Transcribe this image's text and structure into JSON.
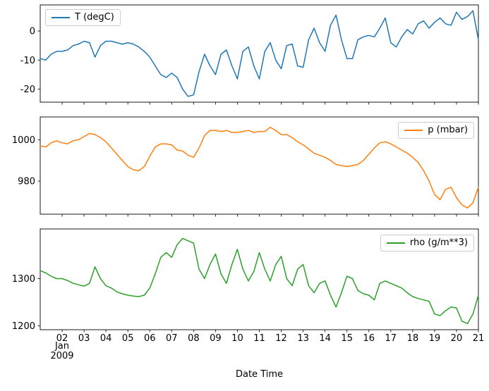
{
  "chart_data": {
    "type": "line",
    "xlabel": "Date Time",
    "xlim": [
      1,
      21
    ],
    "xticks": [
      2,
      3,
      4,
      5,
      6,
      7,
      8,
      9,
      10,
      11,
      12,
      13,
      14,
      15,
      16,
      17,
      18,
      19,
      20,
      21
    ],
    "xtick_labels": [
      "02",
      "03",
      "04",
      "05",
      "06",
      "07",
      "08",
      "09",
      "10",
      "11",
      "12",
      "13",
      "14",
      "15",
      "16",
      "17",
      "18",
      "19",
      "20",
      "21"
    ],
    "first_tick_month": "Jan",
    "first_tick_year": "2009",
    "grid": false,
    "x": [
      1,
      1.25,
      1.5,
      1.75,
      2,
      2.25,
      2.5,
      2.75,
      3,
      3.25,
      3.5,
      3.75,
      4,
      4.25,
      4.5,
      4.75,
      5,
      5.25,
      5.5,
      5.75,
      6,
      6.25,
      6.5,
      6.75,
      7,
      7.25,
      7.5,
      7.75,
      8,
      8.25,
      8.5,
      8.75,
      9,
      9.25,
      9.5,
      9.75,
      10,
      10.25,
      10.5,
      10.75,
      11,
      11.25,
      11.5,
      11.75,
      12,
      12.25,
      12.5,
      12.75,
      13,
      13.25,
      13.5,
      13.75,
      14,
      14.25,
      14.5,
      14.75,
      15,
      15.25,
      15.5,
      15.75,
      16,
      16.25,
      16.5,
      16.75,
      17,
      17.25,
      17.5,
      17.75,
      18,
      18.25,
      18.5,
      18.75,
      19,
      19.25,
      19.5,
      19.75,
      20,
      20.25,
      20.5,
      20.75,
      21
    ],
    "subplots": [
      {
        "name": "T (degC)",
        "color": "#1f77b4",
        "legend_loc": "upper left",
        "ylim": [
          -24.5,
          9
        ],
        "yticks": [
          0,
          -10,
          -20
        ],
        "values": [
          -9.5,
          -10,
          -8,
          -7,
          -7,
          -6.5,
          -5,
          -4.5,
          -3.5,
          -4,
          -9,
          -5,
          -3.5,
          -3.5,
          -4,
          -4.5,
          -4,
          -4.5,
          -5.5,
          -7,
          -9,
          -12,
          -15,
          -16,
          -14.5,
          -16,
          -20,
          -22.5,
          -22,
          -14,
          -8,
          -12,
          -15,
          -8,
          -6.5,
          -12,
          -16.5,
          -7,
          -5.5,
          -12,
          -16.5,
          -7,
          -4,
          -10,
          -13,
          -5,
          -4.5,
          -12,
          -12.5,
          -3,
          1,
          -4,
          -7,
          2,
          5.5,
          -3,
          -9.5,
          -9.5,
          -3,
          -2,
          -1.5,
          -2,
          1,
          4.5,
          -4,
          -5.5,
          -2,
          0.5,
          -1,
          2.5,
          3.5,
          1,
          3,
          4.5,
          2.5,
          2,
          6.5,
          4,
          5,
          7,
          -3
        ]
      },
      {
        "name": "p (mbar)",
        "color": "#ff7f0e",
        "legend_loc": "upper right",
        "ylim": [
          964,
          1011
        ],
        "yticks": [
          1000,
          980
        ],
        "values": [
          997,
          996.5,
          998.5,
          999.5,
          998.5,
          998,
          999.5,
          1000,
          1001.5,
          1003,
          1002.5,
          1001,
          999,
          996,
          993,
          990,
          987,
          985.5,
          985,
          987,
          992,
          996.5,
          998,
          998,
          997.5,
          995,
          994.5,
          992.5,
          991.5,
          996,
          1002,
          1004.5,
          1004.5,
          1004,
          1004.5,
          1003.5,
          1003.5,
          1004,
          1004.5,
          1003.5,
          1004,
          1004,
          1006,
          1004.5,
          1002.5,
          1002.5,
          1001,
          999,
          997.5,
          995.5,
          993.5,
          992.5,
          991.5,
          990,
          988,
          987.5,
          987,
          987.5,
          988,
          990,
          993,
          996,
          998.5,
          999,
          998,
          996.5,
          995,
          993.5,
          991.5,
          989,
          985,
          980,
          973.5,
          971,
          976,
          977,
          972,
          968.5,
          967,
          969.5,
          977
        ]
      },
      {
        "name": "rho (g/m**3)",
        "color": "#2ca02c",
        "legend_loc": "upper right",
        "ylim": [
          1192,
          1405
        ],
        "yticks": [
          1300,
          1200
        ],
        "values": [
          1317,
          1312,
          1305,
          1300,
          1300,
          1296,
          1290,
          1287,
          1284,
          1290,
          1325,
          1300,
          1285,
          1280,
          1272,
          1268,
          1265,
          1263,
          1262,
          1265,
          1280,
          1310,
          1345,
          1355,
          1345,
          1372,
          1385,
          1380,
          1375,
          1320,
          1300,
          1330,
          1352,
          1310,
          1290,
          1330,
          1362,
          1320,
          1295,
          1315,
          1355,
          1320,
          1295,
          1330,
          1347,
          1300,
          1285,
          1320,
          1330,
          1285,
          1270,
          1290,
          1295,
          1265,
          1240,
          1270,
          1305,
          1300,
          1275,
          1268,
          1265,
          1255,
          1290,
          1295,
          1290,
          1285,
          1280,
          1270,
          1262,
          1258,
          1255,
          1252,
          1225,
          1222,
          1232,
          1240,
          1238,
          1210,
          1205,
          1225,
          1265
        ]
      }
    ]
  }
}
